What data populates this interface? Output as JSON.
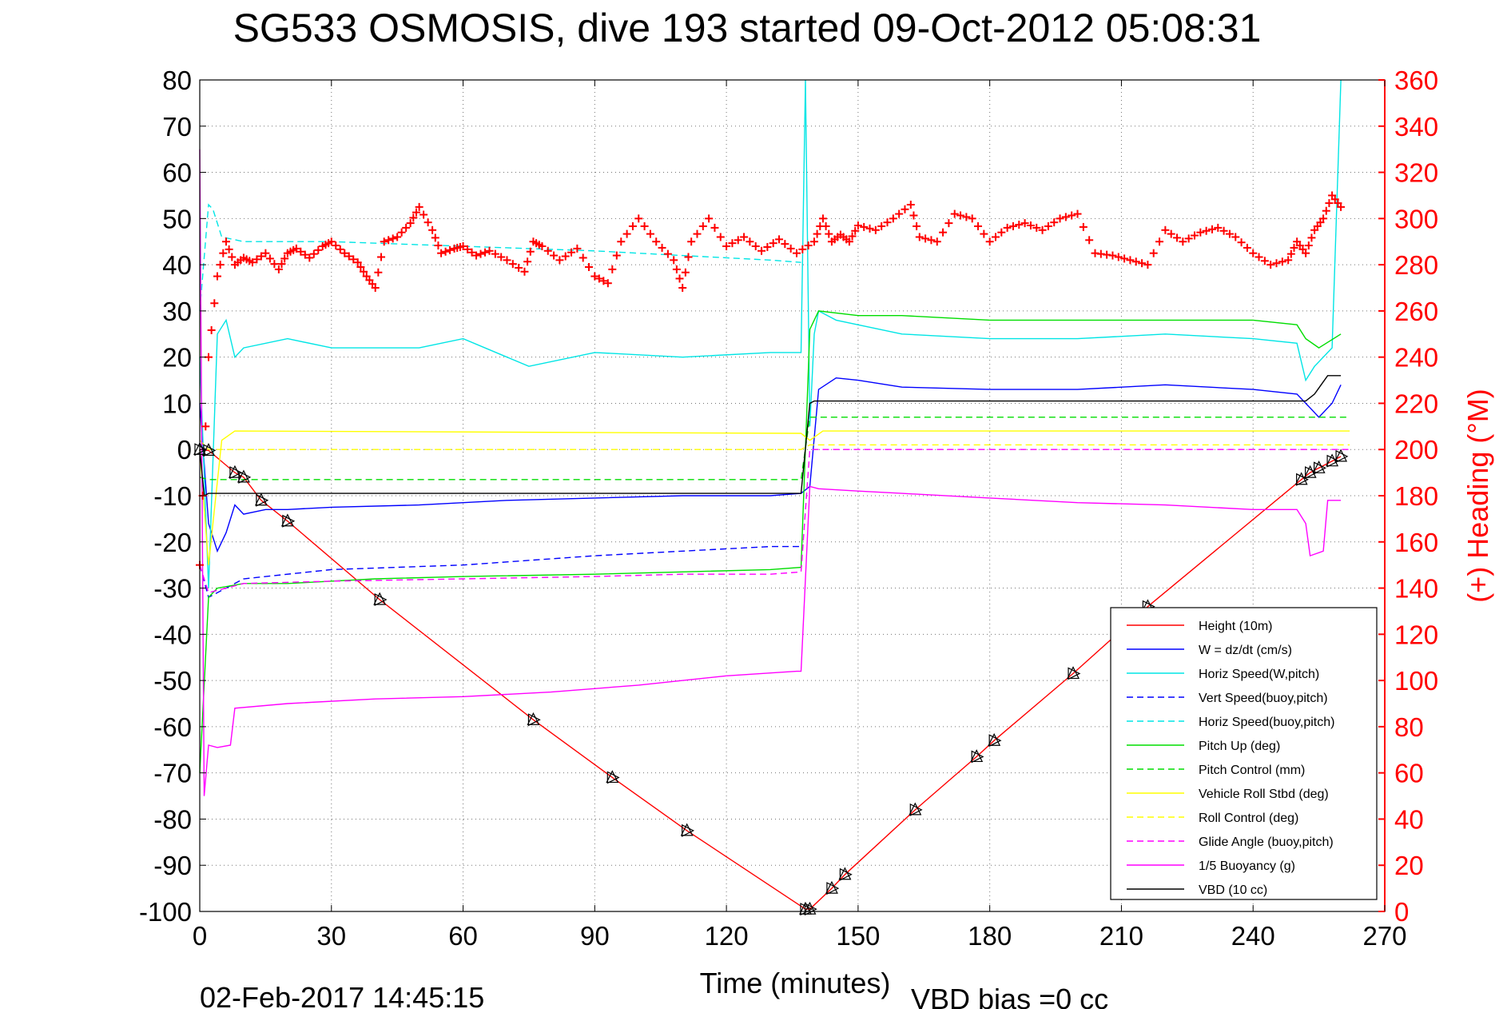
{
  "chart_data": {
    "type": "line",
    "title": "SG533 OSMOSIS, dive 193 started 09-Oct-2012 05:08:31",
    "xlabel": "Time (minutes)",
    "ylabel_right": "(+) Heading (°M)",
    "xlim": [
      0,
      270
    ],
    "ylim_left": [
      -100,
      80
    ],
    "ylim_right": [
      0,
      360
    ],
    "x_ticks": [
      "0",
      "30",
      "60",
      "90",
      "120",
      "150",
      "180",
      "210",
      "240",
      "270"
    ],
    "y_ticks_left": [
      "80",
      "70",
      "60",
      "50",
      "40",
      "30",
      "20",
      "10",
      "0",
      "-10",
      "-20",
      "-30",
      "-40",
      "-50",
      "-60",
      "-70",
      "-80",
      "-90",
      "-100"
    ],
    "y_ticks_right": [
      "360",
      "340",
      "320",
      "300",
      "280",
      "260",
      "240",
      "220",
      "200",
      "180",
      "160",
      "140",
      "120",
      "100",
      "80",
      "60",
      "40",
      "20",
      "0"
    ],
    "grid": true,
    "legend_position": "bottom-right",
    "footer_date": "02-Feb-2017 14:45:15",
    "footer_bias": "VBD bias =0 cc",
    "series": [
      {
        "name": "Height (10m)",
        "color": "#ff0000",
        "style": "solid",
        "x": [
          0,
          2,
          8,
          10,
          14,
          20,
          41,
          76,
          94,
          111,
          138,
          139,
          144,
          147,
          163,
          177,
          181,
          199,
          216,
          251,
          253,
          255,
          258,
          260
        ],
        "y": [
          0,
          -0.2,
          -5,
          -6,
          -11,
          -15.5,
          -32.5,
          -58.5,
          -71,
          -82.5,
          -99.5,
          -99.5,
          -95,
          -92,
          -78,
          -66.5,
          -63,
          -48.5,
          -34,
          -6.5,
          -5,
          -4,
          -2.5,
          -1.5
        ]
      },
      {
        "name": "W = dz/dt (cm/s)",
        "color": "#0000ff",
        "style": "solid",
        "x": [
          0,
          2,
          4,
          6,
          8,
          10,
          15,
          20,
          30,
          50,
          70,
          90,
          110,
          130,
          137,
          139,
          141,
          145,
          150,
          160,
          180,
          200,
          220,
          240,
          250,
          253,
          255,
          258,
          260
        ],
        "y": [
          10,
          -16,
          -22,
          -18,
          -12,
          -14,
          -13,
          -13,
          -12.5,
          -12,
          -11,
          -10.5,
          -10,
          -10,
          -9.5,
          -8,
          13,
          15.5,
          15,
          13.5,
          13,
          13,
          14,
          13,
          12,
          9,
          7,
          10,
          14
        ]
      },
      {
        "name": "Horiz Speed(W,pitch)",
        "color": "#00e5e5",
        "style": "solid",
        "x": [
          0,
          2,
          4,
          6,
          8,
          10,
          20,
          30,
          50,
          60,
          75,
          90,
          110,
          130,
          137,
          138,
          139,
          140,
          141,
          145,
          160,
          180,
          200,
          220,
          240,
          250,
          252,
          254,
          258,
          260
        ],
        "y": [
          20,
          -30,
          25,
          28,
          20,
          22,
          24,
          22,
          22,
          24,
          18,
          21,
          20,
          21,
          21,
          80,
          5,
          25,
          30,
          28,
          25,
          24,
          24,
          25,
          24,
          23,
          15,
          18,
          22,
          80
        ]
      },
      {
        "name": "Vert Speed(buoy,pitch)",
        "color": "#0000ff",
        "style": "dashed",
        "x": [
          0,
          2,
          10,
          30,
          60,
          90,
          110,
          130,
          137
        ],
        "y": [
          -25,
          -32,
          -28,
          -26,
          -25,
          -23,
          -22,
          -21,
          -21
        ]
      },
      {
        "name": "Horiz Speed(buoy,pitch)",
        "color": "#00e5e5",
        "style": "dashed",
        "x": [
          0,
          2,
          3,
          5,
          10,
          30,
          60,
          90,
          110,
          130,
          137
        ],
        "y": [
          30,
          53,
          52,
          46,
          45,
          45,
          44,
          43,
          42,
          41,
          40.5
        ]
      },
      {
        "name": "Pitch Up (deg)",
        "color": "#00dd00",
        "style": "solid",
        "x": [
          0,
          2,
          4,
          10,
          20,
          40,
          60,
          90,
          110,
          130,
          137,
          139,
          141,
          150,
          160,
          180,
          200,
          220,
          240,
          250,
          252,
          255,
          260
        ],
        "y": [
          -70,
          -32,
          -30,
          -29,
          -29,
          -28,
          -27.5,
          -27,
          -26.5,
          -26,
          -25.5,
          26,
          30,
          29,
          29,
          28,
          28,
          28,
          28,
          27,
          24,
          22,
          25
        ]
      },
      {
        "name": "Pitch Control (mm)",
        "color": "#00dd00",
        "style": "dashed",
        "x": [
          0,
          2,
          137,
          139,
          250,
          262
        ],
        "y": [
          -6,
          -6.5,
          -6.5,
          7,
          7,
          7
        ]
      },
      {
        "name": "Vehicle Roll Stbd (deg)",
        "color": "#ffff00",
        "style": "solid",
        "x": [
          0,
          2,
          5,
          8,
          137,
          139,
          142,
          250,
          262
        ],
        "y": [
          0,
          -25,
          2,
          4,
          3.5,
          2,
          4,
          4,
          4
        ]
      },
      {
        "name": "Roll Control (deg)",
        "color": "#ffff00",
        "style": "dashed",
        "x": [
          0,
          2,
          137,
          139,
          262
        ],
        "y": [
          2,
          0,
          0,
          1,
          1
        ]
      },
      {
        "name": "Glide Angle (buoy,pitch)",
        "color": "#ff00ff",
        "style": "dashed",
        "x": [
          0,
          2,
          10,
          30,
          60,
          90,
          110,
          130,
          137,
          139,
          250,
          262
        ],
        "y": [
          -25,
          -31,
          -29,
          -28.5,
          -28,
          -27.5,
          -27,
          -27,
          -26.5,
          0,
          0,
          0
        ]
      },
      {
        "name": "1/5 Buoyancy (g)",
        "color": "#ff00ff",
        "style": "solid",
        "x": [
          0,
          1,
          2,
          4,
          7,
          8,
          20,
          40,
          60,
          80,
          100,
          120,
          136,
          137,
          139,
          141,
          150,
          160,
          180,
          200,
          220,
          240,
          250,
          252,
          253,
          256,
          257,
          260
        ],
        "y": [
          65,
          -75,
          -64,
          -64.5,
          -64,
          -56,
          -55,
          -54,
          -53.5,
          -52.5,
          -51,
          -49,
          -48,
          -48,
          -8,
          -8.5,
          -9,
          -9.5,
          -10.5,
          -11.5,
          -12,
          -13,
          -13,
          -16,
          -23,
          -22,
          -11,
          -11
        ]
      },
      {
        "name": "VBD (10 cc)",
        "color": "#000000",
        "style": "solid",
        "x": [
          0,
          1,
          2,
          137,
          139,
          140,
          250,
          252,
          254,
          257,
          260
        ],
        "y": [
          0,
          -10,
          -9.5,
          -9.5,
          10,
          10.5,
          10.5,
          10.5,
          12,
          16,
          16
        ]
      },
      {
        "name": "",
        "role": "heading",
        "color": "#ff0000",
        "style": "plus-markers",
        "axis": "right",
        "x": [
          0,
          2,
          4,
          6,
          8,
          10,
          12,
          15,
          18,
          20,
          22,
          25,
          28,
          30,
          33,
          36,
          38,
          40,
          42,
          45,
          48,
          50,
          53,
          55,
          58,
          60,
          63,
          66,
          70,
          74,
          76,
          78,
          82,
          86,
          90,
          93,
          96,
          100,
          104,
          108,
          110,
          112,
          116,
          120,
          124,
          128,
          132,
          136,
          140,
          142,
          144,
          146,
          148,
          150,
          154,
          158,
          162,
          164,
          168,
          172,
          176,
          180,
          184,
          188,
          192,
          196,
          200,
          204,
          208,
          212,
          216,
          220,
          224,
          228,
          232,
          236,
          240,
          244,
          248,
          250,
          252,
          254,
          256,
          258,
          260
        ],
        "y": [
          150,
          240,
          275,
          290,
          280,
          283,
          281,
          285,
          278,
          285,
          287,
          283,
          288,
          290,
          285,
          281,
          275,
          270,
          290,
          292,
          298,
          305,
          295,
          285,
          287,
          288,
          284,
          286,
          282,
          277,
          290,
          288,
          282,
          287,
          275,
          272,
          290,
          300,
          290,
          282,
          270,
          290,
          300,
          288,
          292,
          286,
          291,
          285,
          290,
          300,
          290,
          293,
          290,
          297,
          295,
          300,
          306,
          292,
          290,
          302,
          300,
          290,
          296,
          298,
          295,
          300,
          302,
          285,
          284,
          282,
          280,
          295,
          290,
          294,
          296,
          292,
          285,
          280,
          282,
          290,
          285,
          295,
          300,
          310,
          305
        ]
      }
    ]
  }
}
